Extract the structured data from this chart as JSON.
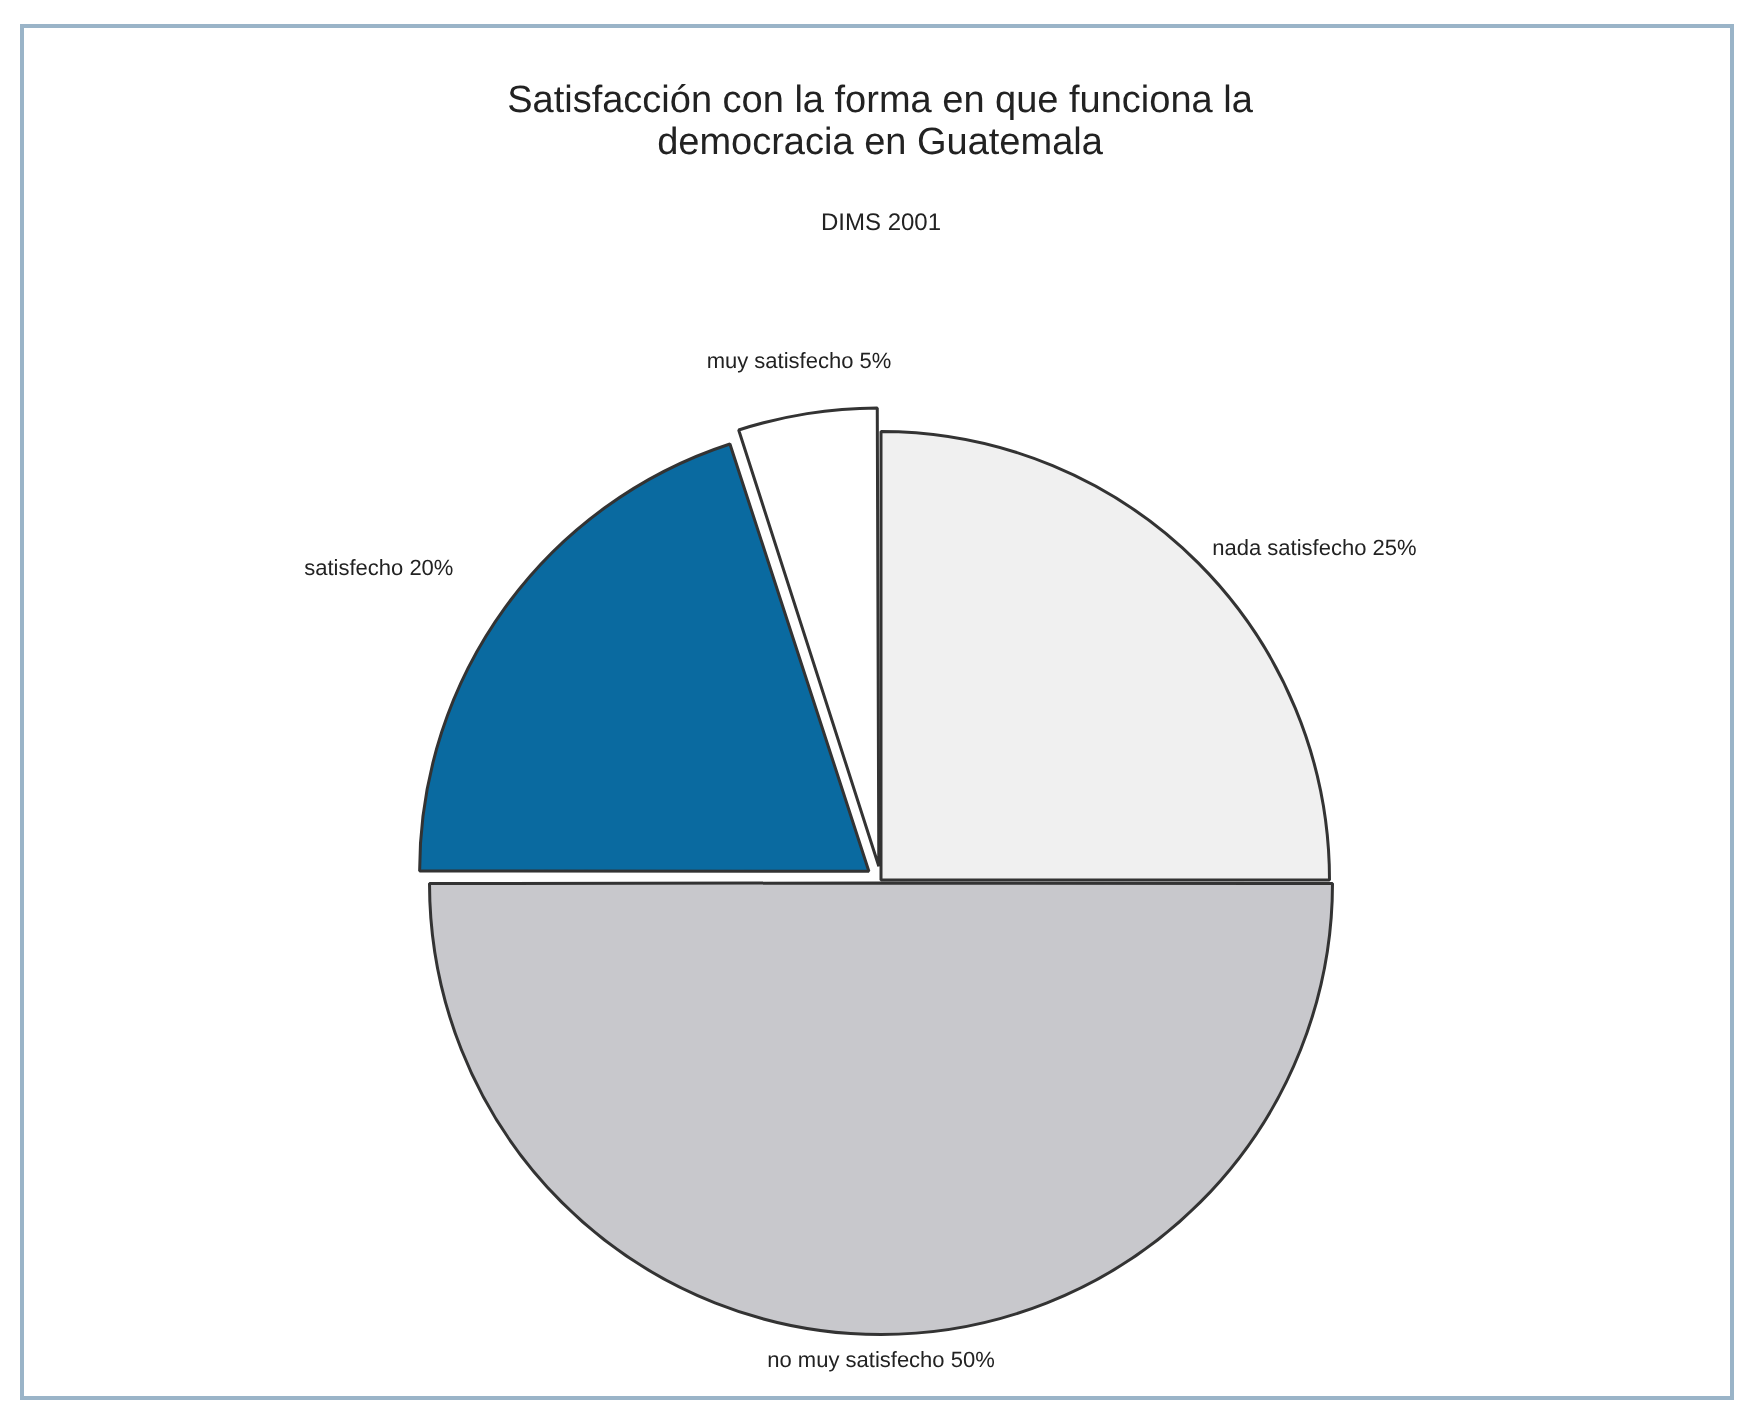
{
  "chart_data": {
    "type": "pie",
    "title": "Satisfacción con la forma en que funciona la democracia en Guatemala",
    "subtitle": "DIMS 2001",
    "categories": [
      "nada satisfecho",
      "no muy satisfecho",
      "satisfecho",
      "muy satisfecho"
    ],
    "values": [
      25,
      50,
      20,
      5
    ],
    "value_labels": [
      "25%",
      "50%",
      "20%",
      "5%"
    ],
    "colors": [
      "#f0f0f0",
      "#c8c8cc",
      "#0a6aa0",
      "#ffffff"
    ],
    "legend": false
  }
}
